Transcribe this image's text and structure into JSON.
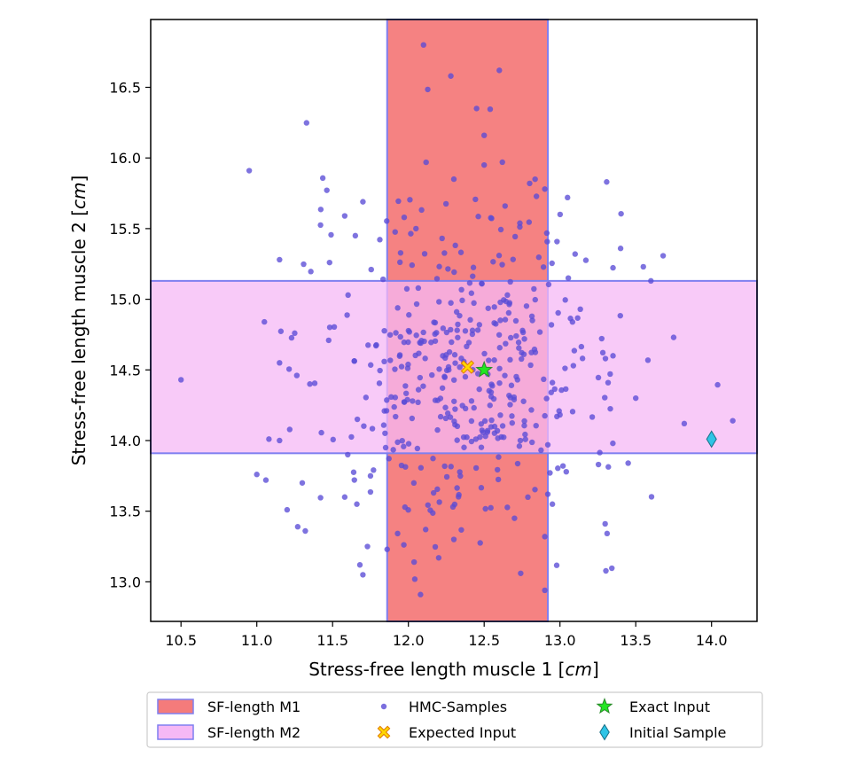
{
  "chart_data": {
    "type": "scatter",
    "title": "",
    "xlabel": "Stress-free length muscle 1 [",
    "xlabel_unit": "cm",
    "ylabel": "Stress-free length muscle 2 [",
    "ylabel_unit": "cm",
    "label_close": "]",
    "xlim": [
      10.3,
      14.3
    ],
    "ylim": [
      12.72,
      16.98
    ],
    "xticks": [
      10.5,
      11.0,
      11.5,
      12.0,
      12.5,
      13.0,
      13.5,
      14.0
    ],
    "yticks": [
      13.0,
      13.5,
      14.0,
      14.5,
      15.0,
      15.5,
      16.0,
      16.5
    ],
    "grid": false,
    "legend_position": "bottom",
    "regions": [
      {
        "name": "SF-length M1",
        "axis": "x",
        "range": [
          11.86,
          12.92
        ],
        "color": "#f47b7b",
        "edge": "#7f7ff0"
      },
      {
        "name": "SF-length M2",
        "axis": "y",
        "range": [
          13.91,
          15.13
        ],
        "color": "#f5b8f5",
        "edge": "#7f7ff0"
      }
    ],
    "series": [
      {
        "name": "HMC-Samples",
        "color": "#5a4bd6",
        "seed": 7,
        "count": 480,
        "mean": [
          12.4,
          14.5
        ],
        "std": [
          0.52,
          0.6
        ],
        "points": [
          [
            12.1,
            16.8
          ],
          [
            12.6,
            16.62
          ],
          [
            12.28,
            16.58
          ],
          [
            12.45,
            16.35
          ],
          [
            12.5,
            16.16
          ],
          [
            10.95,
            15.91
          ],
          [
            12.5,
            15.95
          ],
          [
            12.62,
            15.97
          ],
          [
            12.3,
            15.85
          ],
          [
            12.8,
            15.82
          ],
          [
            11.7,
            15.69
          ],
          [
            12.05,
            15.5
          ],
          [
            12.9,
            15.78
          ],
          [
            13.05,
            15.72
          ],
          [
            13.1,
            15.32
          ],
          [
            10.5,
            14.43
          ],
          [
            11.15,
            15.28
          ],
          [
            11.05,
            14.84
          ],
          [
            11.58,
            15.59
          ],
          [
            11.65,
            15.45
          ],
          [
            11.48,
            15.26
          ],
          [
            13.4,
            15.36
          ],
          [
            13.55,
            15.23
          ],
          [
            13.6,
            15.13
          ],
          [
            13.75,
            14.73
          ],
          [
            13.82,
            14.12
          ],
          [
            14.14,
            14.14
          ],
          [
            13.3,
            14.58
          ],
          [
            13.35,
            14.6
          ],
          [
            13.5,
            14.3
          ],
          [
            13.45,
            13.84
          ],
          [
            13.02,
            13.82
          ],
          [
            12.92,
            13.97
          ],
          [
            12.98,
            14.17
          ],
          [
            12.95,
            14.41
          ],
          [
            12.9,
            12.94
          ],
          [
            12.08,
            12.91
          ],
          [
            12.2,
            13.17
          ],
          [
            12.3,
            13.3
          ],
          [
            11.86,
            13.23
          ],
          [
            11.73,
            13.25
          ],
          [
            11.68,
            13.12
          ],
          [
            11.7,
            13.05
          ],
          [
            11.32,
            13.36
          ],
          [
            11.3,
            13.7
          ],
          [
            11.2,
            13.51
          ],
          [
            11.27,
            13.39
          ],
          [
            11.06,
            13.72
          ],
          [
            11.0,
            13.76
          ],
          [
            11.08,
            14.01
          ],
          [
            11.15,
            14.0
          ],
          [
            11.25,
            14.76
          ],
          [
            11.15,
            14.55
          ],
          [
            11.35,
            14.4
          ],
          [
            11.6,
            13.9
          ],
          [
            11.58,
            13.6
          ],
          [
            11.66,
            13.55
          ],
          [
            11.75,
            13.75
          ],
          [
            11.85,
            13.95
          ],
          [
            12.92,
            13.62
          ],
          [
            12.95,
            13.55
          ],
          [
            12.9,
            13.32
          ],
          [
            12.7,
            13.45
          ]
        ]
      },
      {
        "name": "Expected Input",
        "color": "#ffd700",
        "points": [
          [
            12.39,
            14.52
          ]
        ]
      },
      {
        "name": "Exact Input",
        "color": "#22e622",
        "points": [
          [
            12.5,
            14.5
          ]
        ]
      },
      {
        "name": "Initial Sample",
        "color": "#2ec4e6",
        "points": [
          [
            14.0,
            14.01
          ]
        ]
      }
    ],
    "legend": [
      {
        "label": "SF-length M1",
        "marker": "patch",
        "color": "#f47b7b"
      },
      {
        "label": "HMC-Samples",
        "marker": "dot",
        "color": "#5a4bd6"
      },
      {
        "label": "Exact Input",
        "marker": "star",
        "color": "#22e622"
      },
      {
        "label": "SF-length M2",
        "marker": "patch",
        "color": "#f5b8f5"
      },
      {
        "label": "Expected Input",
        "marker": "cross",
        "color": "#ffd700"
      },
      {
        "label": "Initial Sample",
        "marker": "diamond",
        "color": "#2ec4e6"
      }
    ]
  }
}
